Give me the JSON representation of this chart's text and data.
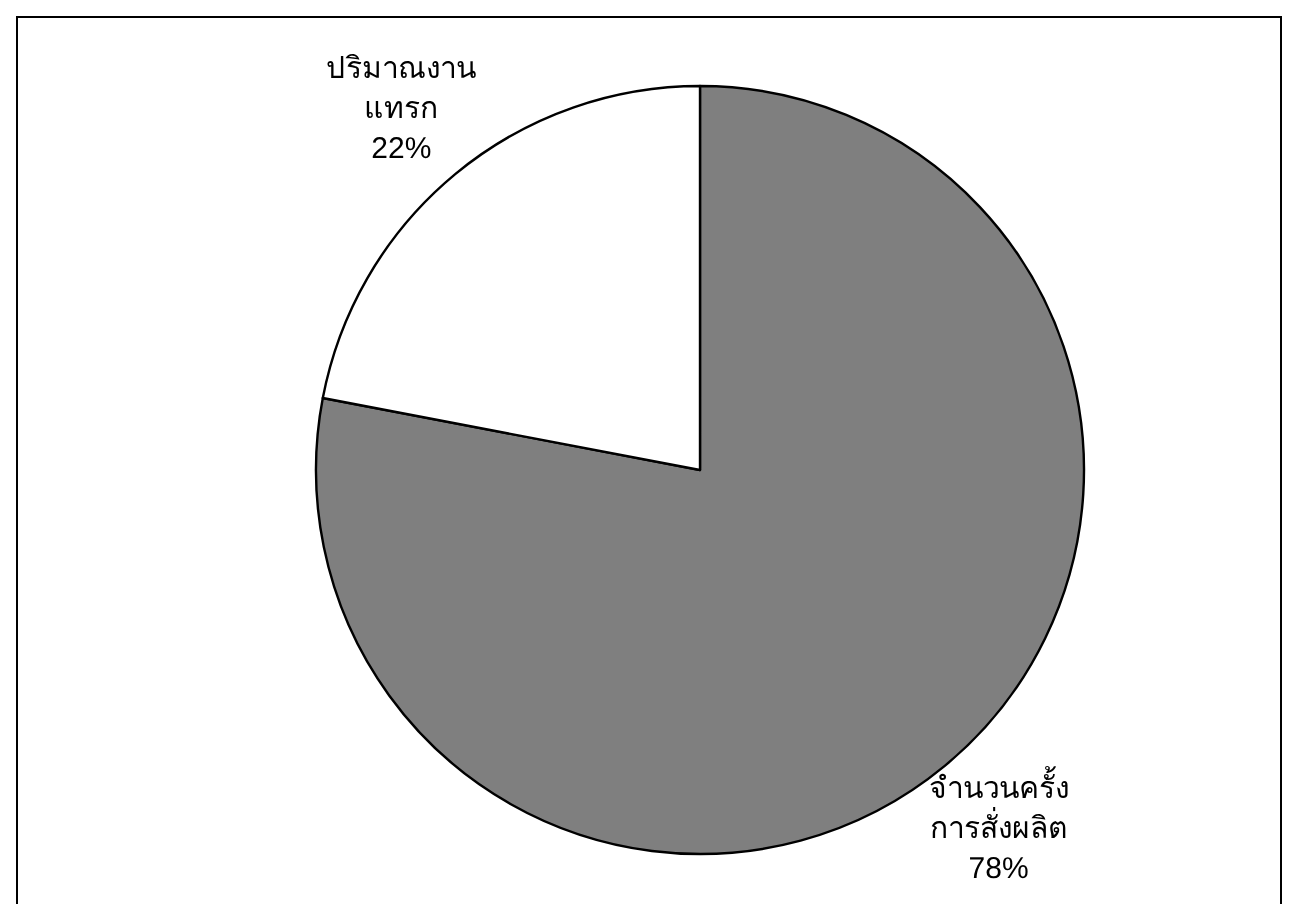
{
  "chart_data": {
    "type": "pie",
    "categories": [
      "จำนวนครั้งการสั่งผลิต",
      "ปริมาณงานแทรก"
    ],
    "values": [
      78,
      22
    ],
    "colors": [
      "#7f7f7f",
      "#ffffff"
    ],
    "value_labels": [
      "78%",
      "22%"
    ]
  }
}
